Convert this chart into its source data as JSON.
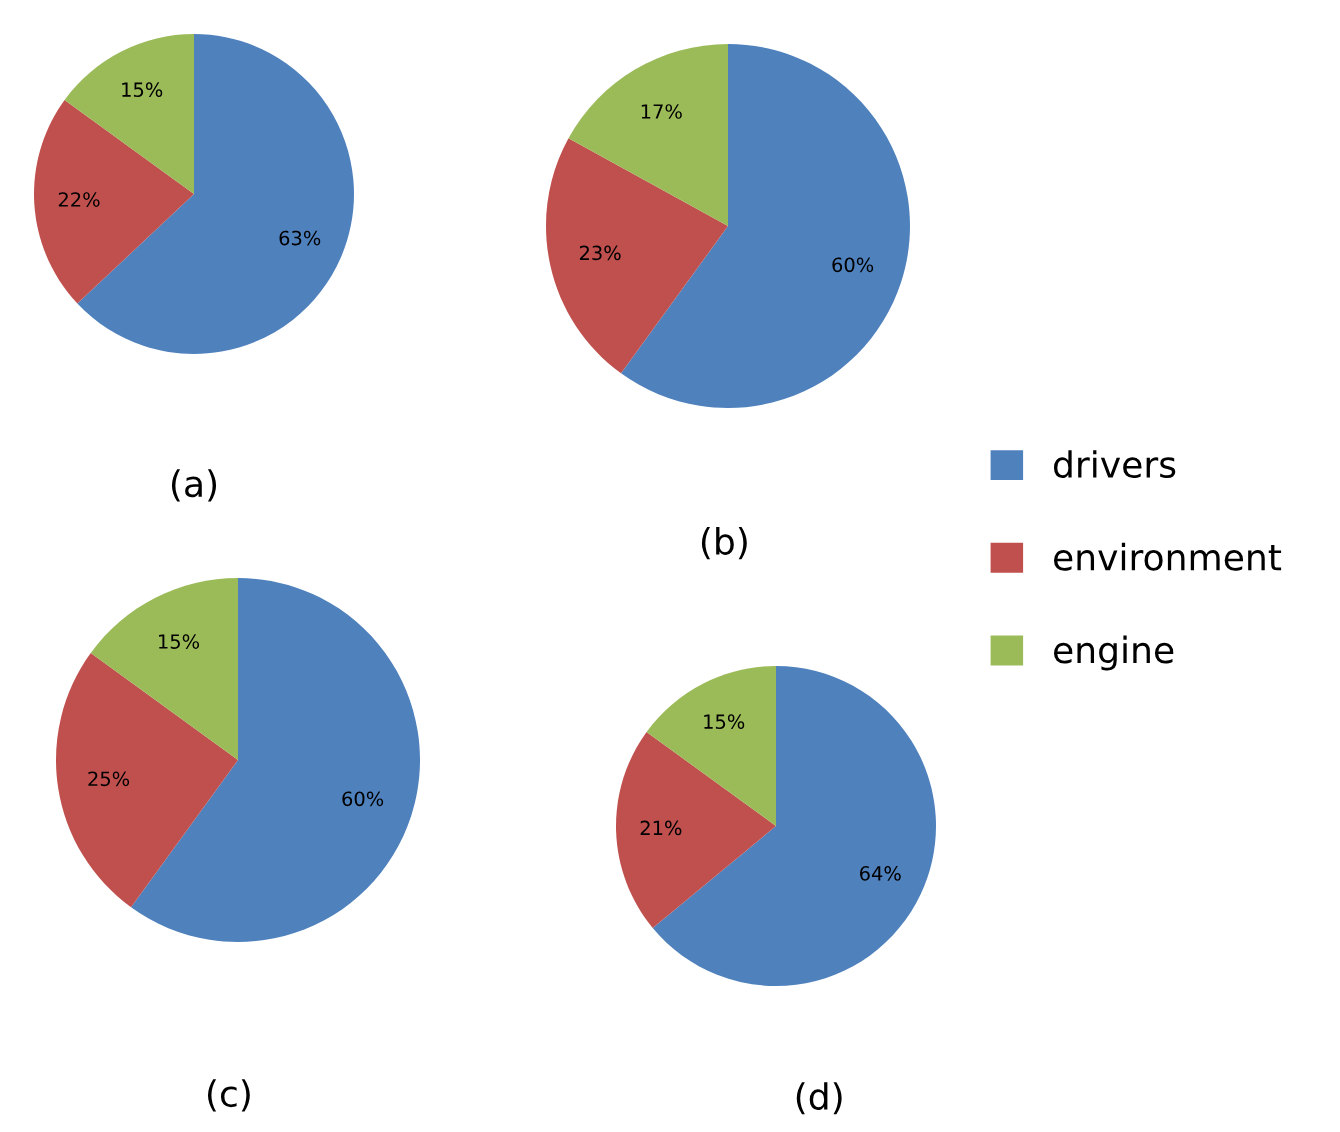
{
  "chart_data": [
    {
      "type": "pie",
      "title": "(a)",
      "categories": [
        "drivers",
        "environment",
        "engine"
      ],
      "values": [
        63,
        22,
        15
      ],
      "colors": [
        "#4f81bd",
        "#c0504d",
        "#9bbb59"
      ],
      "value_labels": [
        "63%",
        "22%",
        "15%"
      ],
      "legend": "right"
    },
    {
      "type": "pie",
      "title": "(b)",
      "categories": [
        null,
        null,
        null
      ],
      "values": [
        60,
        23,
        17
      ],
      "colors": [
        "#4f81bd",
        "#c0504d",
        "#9bbb59"
      ],
      "value_labels": [
        "60%",
        "23%",
        "17%"
      ]
    },
    {
      "type": "pie",
      "title": "(c)",
      "categories": [
        null,
        null,
        null
      ],
      "values": [
        60,
        25,
        15
      ],
      "colors": [
        "#4f81bd",
        "#c0504d",
        "#9bbb59"
      ],
      "value_labels": [
        "60%",
        "25%",
        "15%"
      ]
    },
    {
      "type": "pie",
      "title": "(d)",
      "categories": [
        null,
        null,
        null
      ],
      "values": [
        64,
        21,
        15
      ],
      "colors": [
        "#4f81bd",
        "#c0504d",
        "#9bbb59"
      ],
      "value_labels": [
        "64%",
        "21%",
        "15%"
      ]
    }
  ]
}
